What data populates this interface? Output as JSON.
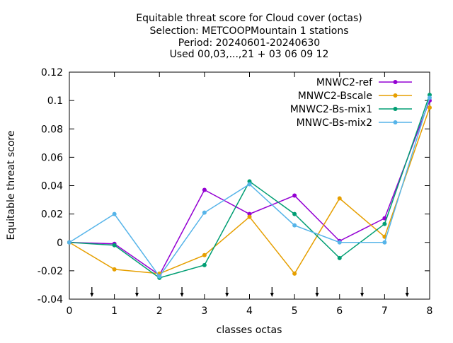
{
  "chart_data": {
    "type": "line",
    "title_lines": [
      "Equitable threat score  for Cloud cover (octas)",
      "Selection: METCOOPMountain      1 stations",
      "Period: 20240601-20240630",
      "Used 00,03,...,21 + 03 06 09 12"
    ],
    "xlabel": "classes octas",
    "ylabel": "Equitable threat score",
    "xlim": [
      0,
      8
    ],
    "ylim": [
      -0.04,
      0.12
    ],
    "x_ticks": [
      0,
      1,
      2,
      3,
      4,
      5,
      6,
      7,
      8
    ],
    "x_tick_labels": [
      "0",
      "1",
      "2",
      "3",
      "4",
      "5",
      "6",
      "7",
      "8"
    ],
    "y_ticks": [
      -0.04,
      -0.02,
      0,
      0.02,
      0.04,
      0.06,
      0.08,
      0.1,
      0.12
    ],
    "y_tick_labels": [
      "-0.04",
      "-0.02",
      "0",
      "0.02",
      "0.04",
      "0.06",
      "0.08",
      "0.1",
      "0.12"
    ],
    "grid": false,
    "legend_position": "top-right",
    "class_markers": [
      0.5,
      1.5,
      2.5,
      3.5,
      4.5,
      5.5,
      6.5,
      7.5
    ],
    "x": [
      0,
      1,
      2,
      3,
      4,
      5,
      6,
      7,
      8
    ],
    "series": [
      {
        "name": "MNWC2-ref",
        "color": "#9400d3",
        "marker": "circle",
        "values": [
          0,
          -0.001,
          -0.023,
          0.037,
          0.02,
          0.033,
          0.001,
          0.017,
          0.1
        ]
      },
      {
        "name": "MNWC2-Bscale",
        "color": "#e69f00",
        "marker": "circle",
        "values": [
          0,
          -0.019,
          -0.022,
          -0.009,
          0.018,
          -0.022,
          0.031,
          0.004,
          0.095
        ]
      },
      {
        "name": "MNWC2-Bs-mix1",
        "color": "#009e73",
        "marker": "circle",
        "values": [
          0,
          -0.002,
          -0.025,
          -0.016,
          0.043,
          0.02,
          -0.011,
          0.013,
          0.104
        ]
      },
      {
        "name": "MNWC-Bs-mix2",
        "color": "#56b4e9",
        "marker": "circle",
        "values": [
          0,
          0.02,
          -0.024,
          0.021,
          0.041,
          0.012,
          0.0,
          0.0,
          0.102
        ]
      }
    ]
  }
}
